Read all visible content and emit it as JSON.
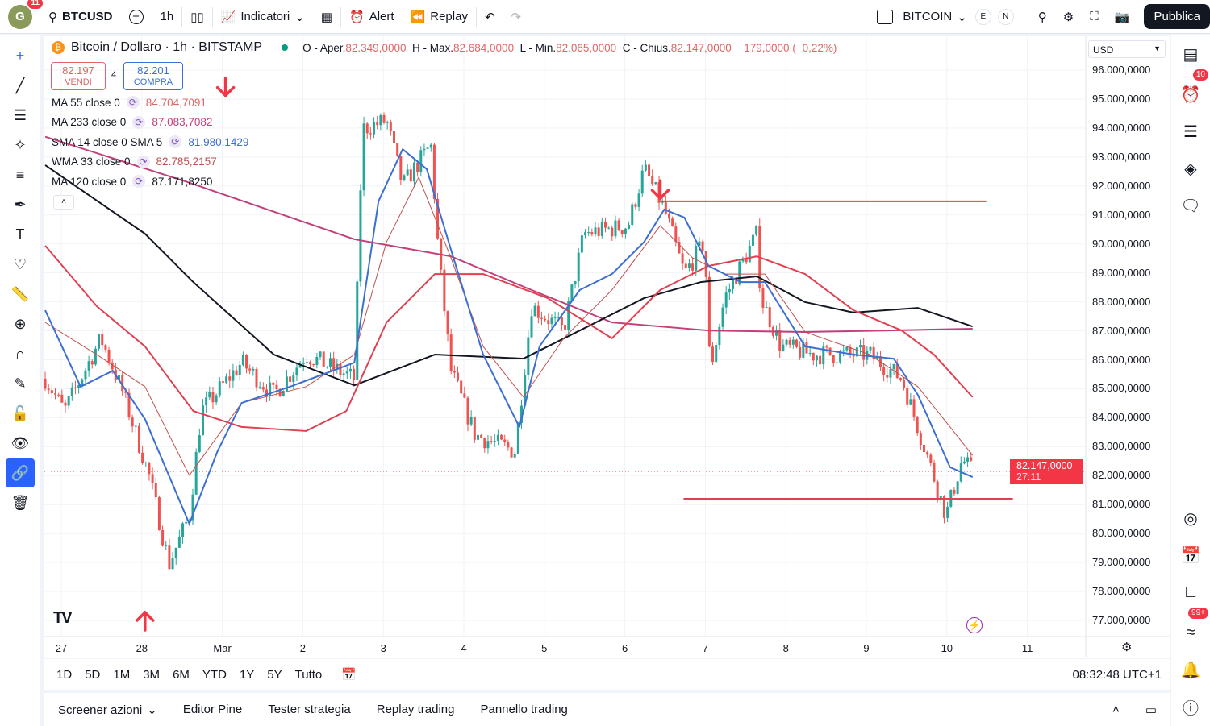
{
  "top": {
    "avatar": "G",
    "avatar_badge": "11",
    "symbol": "BTCUSD",
    "interval": "1h",
    "indicators": "Indicatori",
    "alert": "Alert",
    "replay": "Replay",
    "watchlist": "BITCOIN",
    "e": "E",
    "n": "N",
    "publish": "Pubblica"
  },
  "legend": {
    "title": "Bitcoin / Dollaro · 1h · BITSTAMP",
    "o_label": "O - Aper.",
    "o": "82.349,0000",
    "h_label": "H - Max.",
    "h": "82.684,0000",
    "l_label": "L - Min.",
    "l": "82.065,0000",
    "c_label": "C - Chius.",
    "c": "82.147,0000",
    "change": "−179,0000 (−0,22%)"
  },
  "trade": {
    "sell_price": "82.197",
    "sell": "VENDI",
    "spread": "4",
    "buy_price": "82.201",
    "buy": "COMPRA"
  },
  "indicators": [
    {
      "name": "MA 55 close 0",
      "value": "84.704,7091",
      "color": "#e06666"
    },
    {
      "name": "MA 233 close 0",
      "value": "87.083,7082",
      "color": "#c2407a"
    },
    {
      "name": "SMA 14 close 0 SMA 5",
      "value": "81.980,1429",
      "color": "#3c6fd1"
    },
    {
      "name": "WMA 33 close 0",
      "value": "82.785,2157",
      "color": "#c0504d"
    },
    {
      "name": "MA 120 close 0",
      "value": "87.171,8250",
      "color": "#131722"
    }
  ],
  "currency": "USD",
  "price_axis": [
    "96.000,0000",
    "95.000,0000",
    "94.000,0000",
    "93.000,0000",
    "92.000,0000",
    "91.000,0000",
    "90.000,0000",
    "89.000,0000",
    "88.000,0000",
    "87.000,0000",
    "86.000,0000",
    "85.000,0000",
    "84.000,0000",
    "83.000,0000",
    "82.000,0000",
    "81.000,0000",
    "80.000,0000",
    "79.000,0000",
    "78.000,0000",
    "77.000,0000"
  ],
  "last_price": {
    "value": "82.147,0000",
    "countdown": "27:11"
  },
  "time_axis": [
    "27",
    "28",
    "Mar",
    "2",
    "3",
    "4",
    "5",
    "6",
    "7",
    "8",
    "9",
    "10",
    "11"
  ],
  "ranges": [
    "1D",
    "5D",
    "1M",
    "3M",
    "6M",
    "YTD",
    "1Y",
    "5Y",
    "Tutto"
  ],
  "clock": "08:32:48 UTC+1",
  "footer": [
    "Screener azioni",
    "Editor Pine",
    "Tester strategia",
    "Replay trading",
    "Pannello trading"
  ],
  "right_badges": {
    "alerts": "10",
    "news": "99+"
  },
  "colors": {
    "up": "#26a69a",
    "down": "#ef5350",
    "accent": "#2962ff",
    "line": "#e04050"
  },
  "chart_data": {
    "type": "candlestick",
    "xlabel": "date (days from Feb 27)",
    "ylabel": "USD",
    "ylim": [
      77000,
      96000
    ],
    "price_path": [
      [
        -0.2,
        85350
      ],
      [
        0.04,
        84230
      ],
      [
        0.49,
        86740
      ],
      [
        0.74,
        85070
      ],
      [
        1.09,
        82010
      ],
      [
        1.34,
        78950
      ],
      [
        1.59,
        80620
      ],
      [
        1.74,
        84230
      ],
      [
        2.24,
        85900
      ],
      [
        2.64,
        84790
      ],
      [
        3.04,
        86180
      ],
      [
        3.64,
        85350
      ],
      [
        3.74,
        93970
      ],
      [
        4.04,
        94250
      ],
      [
        4.24,
        92020
      ],
      [
        4.59,
        93410
      ],
      [
        4.69,
        89520
      ],
      [
        4.84,
        85620
      ],
      [
        5.14,
        83400
      ],
      [
        5.64,
        82840
      ],
      [
        5.84,
        87850
      ],
      [
        6.24,
        87010
      ],
      [
        6.49,
        90350
      ],
      [
        7.04,
        90630
      ],
      [
        7.24,
        92580
      ],
      [
        7.49,
        91190
      ],
      [
        7.74,
        88960
      ],
      [
        7.99,
        90070
      ],
      [
        8.06,
        85620
      ],
      [
        8.24,
        88130
      ],
      [
        8.64,
        90350
      ],
      [
        8.69,
        88130
      ],
      [
        8.94,
        86460
      ],
      [
        9.34,
        86180
      ],
      [
        10.04,
        86180
      ],
      [
        10.44,
        85350
      ],
      [
        10.74,
        82840
      ],
      [
        10.99,
        80620
      ],
      [
        11.19,
        82560
      ],
      [
        11.32,
        82147
      ]
    ],
    "ma120": [
      [
        -0.2,
        92720
      ],
      [
        1.04,
        90350
      ],
      [
        1.64,
        88680
      ],
      [
        2.64,
        86180
      ],
      [
        3.64,
        85120
      ],
      [
        4.64,
        86180
      ],
      [
        5.74,
        86040
      ],
      [
        6.44,
        87010
      ],
      [
        7.24,
        88130
      ],
      [
        7.94,
        88680
      ],
      [
        8.64,
        88880
      ],
      [
        9.24,
        87990
      ],
      [
        9.84,
        87630
      ],
      [
        10.64,
        87790
      ],
      [
        11.32,
        87150
      ]
    ],
    "ma233": [
      [
        -0.2,
        93700
      ],
      [
        1.54,
        92160
      ],
      [
        3.64,
        90160
      ],
      [
        4.84,
        89570
      ],
      [
        5.84,
        88410
      ],
      [
        6.84,
        87290
      ],
      [
        8.04,
        87010
      ],
      [
        9.24,
        86960
      ],
      [
        10.24,
        87010
      ],
      [
        11.32,
        87070
      ]
    ],
    "ma55": [
      [
        -0.2,
        89940
      ],
      [
        0.44,
        87850
      ],
      [
        1.04,
        86460
      ],
      [
        1.64,
        84230
      ],
      [
        2.24,
        83680
      ],
      [
        3.04,
        83540
      ],
      [
        3.54,
        84230
      ],
      [
        4.04,
        87290
      ],
      [
        4.64,
        88960
      ],
      [
        5.24,
        88960
      ],
      [
        6.04,
        88130
      ],
      [
        6.84,
        86740
      ],
      [
        7.44,
        88410
      ],
      [
        8.04,
        89240
      ],
      [
        8.64,
        89570
      ],
      [
        9.24,
        88960
      ],
      [
        9.84,
        87710
      ],
      [
        10.44,
        87010
      ],
      [
        10.84,
        86180
      ],
      [
        11.32,
        84710
      ]
    ],
    "sma14": [
      [
        -0.2,
        87710
      ],
      [
        0.24,
        85070
      ],
      [
        0.64,
        85620
      ],
      [
        1.04,
        83950
      ],
      [
        1.59,
        80340
      ],
      [
        1.94,
        82840
      ],
      [
        2.24,
        84510
      ],
      [
        2.84,
        85070
      ],
      [
        3.64,
        85900
      ],
      [
        3.94,
        91470
      ],
      [
        4.24,
        93270
      ],
      [
        4.54,
        92580
      ],
      [
        4.84,
        89800
      ],
      [
        5.24,
        86180
      ],
      [
        5.69,
        83680
      ],
      [
        5.94,
        86460
      ],
      [
        6.44,
        88410
      ],
      [
        6.84,
        88960
      ],
      [
        7.24,
        90070
      ],
      [
        7.49,
        91190
      ],
      [
        7.74,
        90910
      ],
      [
        8.04,
        89240
      ],
      [
        8.44,
        88680
      ],
      [
        8.74,
        88680
      ],
      [
        9.24,
        86460
      ],
      [
        9.84,
        86180
      ],
      [
        10.34,
        86040
      ],
      [
        10.64,
        84790
      ],
      [
        11.04,
        82290
      ],
      [
        11.32,
        81950
      ]
    ],
    "wma33": [
      [
        -0.2,
        87290
      ],
      [
        0.44,
        86180
      ],
      [
        1.04,
        85070
      ],
      [
        1.59,
        82010
      ],
      [
        2.24,
        84510
      ],
      [
        3.04,
        85070
      ],
      [
        3.64,
        86180
      ],
      [
        4.04,
        90070
      ],
      [
        4.44,
        92300
      ],
      [
        4.84,
        89520
      ],
      [
        5.24,
        86460
      ],
      [
        5.74,
        84710
      ],
      [
        6.24,
        86740
      ],
      [
        6.84,
        88410
      ],
      [
        7.44,
        90630
      ],
      [
        7.84,
        89520
      ],
      [
        8.24,
        88960
      ],
      [
        8.74,
        88960
      ],
      [
        9.24,
        86960
      ],
      [
        10.04,
        86180
      ],
      [
        10.64,
        85070
      ],
      [
        11.04,
        83680
      ],
      [
        11.32,
        82700
      ]
    ],
    "hlines": [
      {
        "price": 91470,
        "from": 7.44,
        "to": 11.49
      },
      {
        "price": 81200,
        "from": 7.73,
        "to": 11.82
      }
    ],
    "arrows": [
      {
        "day": 2.04,
        "price": 95400,
        "dir": "down"
      },
      {
        "day": 7.44,
        "price": 91850,
        "dir": "down"
      },
      {
        "day": 1.04,
        "price": 77000,
        "dir": "up"
      }
    ]
  }
}
